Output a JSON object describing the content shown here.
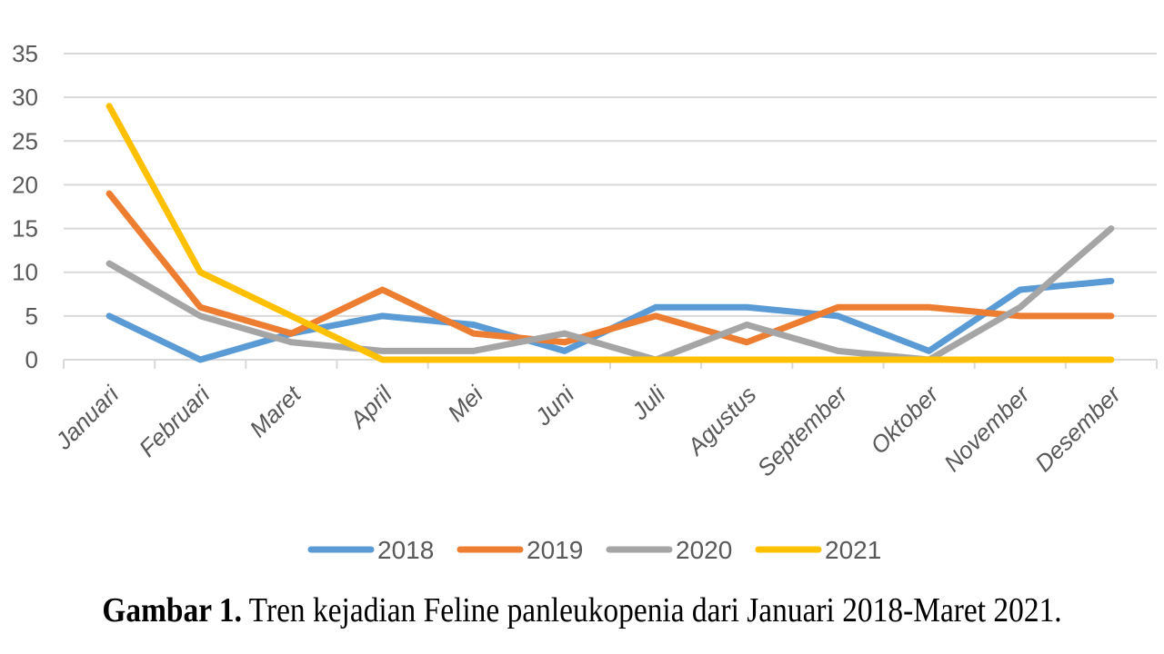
{
  "chart_data": {
    "type": "line",
    "categories": [
      "Januari",
      "Februari",
      "Maret",
      "April",
      "Mei",
      "Juni",
      "Juli",
      "Agustus",
      "September",
      "Oktober",
      "November",
      "Desember"
    ],
    "series": [
      {
        "name": "2018",
        "color": "#5B9BD5",
        "values": [
          5,
          0,
          3,
          5,
          4,
          1,
          6,
          6,
          5,
          1,
          8,
          9
        ]
      },
      {
        "name": "2019",
        "color": "#ED7D31",
        "values": [
          19,
          6,
          3,
          8,
          3,
          2,
          5,
          2,
          6,
          6,
          5,
          5
        ]
      },
      {
        "name": "2020",
        "color": "#A5A5A5",
        "values": [
          11,
          5,
          2,
          1,
          1,
          3,
          0,
          4,
          1,
          0,
          6,
          15
        ]
      },
      {
        "name": "2021",
        "color": "#FFC000",
        "values": [
          29,
          10,
          5,
          0,
          0,
          0,
          0,
          0,
          0,
          0,
          0,
          0
        ]
      }
    ],
    "ylim": [
      0,
      35
    ],
    "yticks": [
      "0",
      "5",
      "10",
      "15",
      "20",
      "25",
      "30",
      "35"
    ],
    "grid": true,
    "legend": "bottom"
  },
  "caption": {
    "label": "Gambar 1.",
    "text": " Tren kejadian Feline panleukopenia dari Januari 2018-Maret 2021."
  }
}
